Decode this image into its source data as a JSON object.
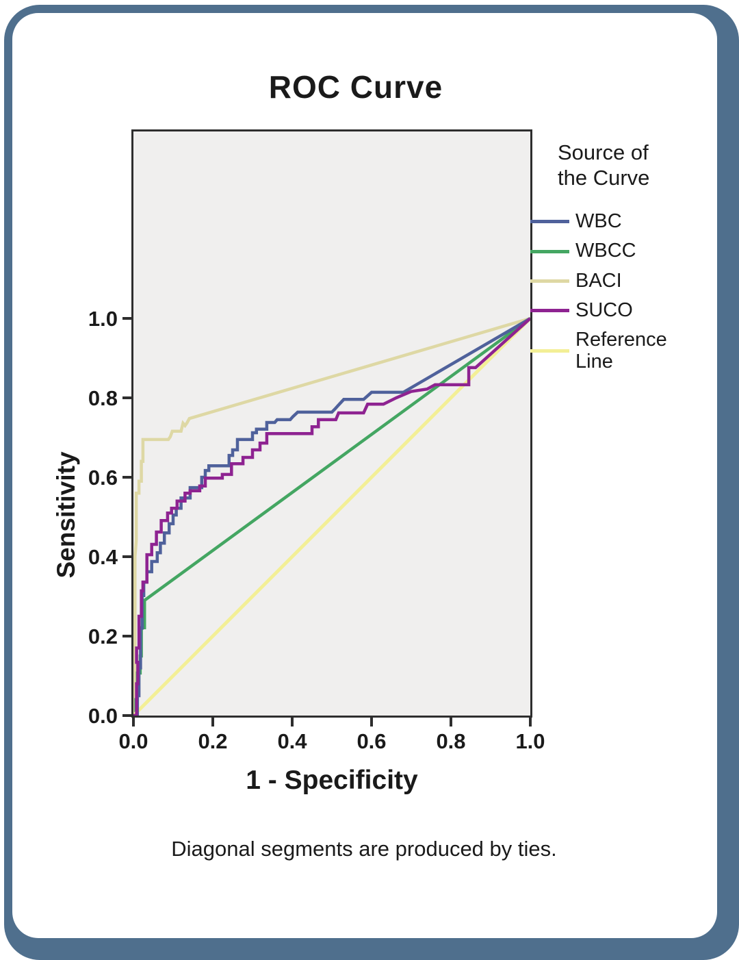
{
  "title": "ROC Curve",
  "footnote": "Diagonal segments are produced by ties.",
  "frame": {
    "border_color": "#4f6f8d",
    "inner_color": "#ffffff"
  },
  "chart_data": {
    "type": "line",
    "title": "ROC Curve",
    "xlabel": "1 - Specificity",
    "ylabel": "Sensitivity",
    "xlim": [
      0,
      1.0
    ],
    "ylim": [
      0,
      1.47
    ],
    "grid": false,
    "legend_position": "right",
    "legend_title": "Source of\nthe Curve",
    "x_ticks": [
      0.0,
      0.2,
      0.4,
      0.6,
      0.8,
      1.0
    ],
    "y_ticks": [
      0.0,
      0.2,
      0.4,
      0.6,
      0.8,
      1.0
    ],
    "x_tick_labels": [
      "0.0",
      "0.2",
      "0.4",
      "0.6",
      "0.8",
      "1.0"
    ],
    "y_tick_labels": [
      "0.0",
      "0.2",
      "0.4",
      "0.6",
      "0.8",
      "1.0"
    ],
    "plot_bg": "#f0efee",
    "frame_color": "#2e2e2e",
    "series": [
      {
        "name": "WBC",
        "color": "#4f619b",
        "points": [
          [
            0,
            0
          ],
          [
            0.01,
            0
          ],
          [
            0.01,
            0.05
          ],
          [
            0.014,
            0.05
          ],
          [
            0.014,
            0.12
          ],
          [
            0.018,
            0.12
          ],
          [
            0.018,
            0.22
          ],
          [
            0.022,
            0.22
          ],
          [
            0.022,
            0.302
          ],
          [
            0.026,
            0.302
          ],
          [
            0.026,
            0.336
          ],
          [
            0.034,
            0.336
          ],
          [
            0.034,
            0.362
          ],
          [
            0.046,
            0.362
          ],
          [
            0.046,
            0.388
          ],
          [
            0.06,
            0.388
          ],
          [
            0.06,
            0.41
          ],
          [
            0.068,
            0.41
          ],
          [
            0.068,
            0.434
          ],
          [
            0.078,
            0.434
          ],
          [
            0.078,
            0.46
          ],
          [
            0.09,
            0.46
          ],
          [
            0.09,
            0.483
          ],
          [
            0.1,
            0.483
          ],
          [
            0.1,
            0.505
          ],
          [
            0.108,
            0.505
          ],
          [
            0.108,
            0.522
          ],
          [
            0.12,
            0.522
          ],
          [
            0.12,
            0.548
          ],
          [
            0.143,
            0.548
          ],
          [
            0.143,
            0.574
          ],
          [
            0.172,
            0.574
          ],
          [
            0.172,
            0.6
          ],
          [
            0.181,
            0.6
          ],
          [
            0.181,
            0.617
          ],
          [
            0.19,
            0.617
          ],
          [
            0.19,
            0.629
          ],
          [
            0.241,
            0.629
          ],
          [
            0.241,
            0.655
          ],
          [
            0.25,
            0.655
          ],
          [
            0.25,
            0.669
          ],
          [
            0.262,
            0.669
          ],
          [
            0.262,
            0.695
          ],
          [
            0.3,
            0.695
          ],
          [
            0.3,
            0.712
          ],
          [
            0.31,
            0.712
          ],
          [
            0.31,
            0.721
          ],
          [
            0.336,
            0.721
          ],
          [
            0.336,
            0.738
          ],
          [
            0.356,
            0.738
          ],
          [
            0.362,
            0.745
          ],
          [
            0.395,
            0.745
          ],
          [
            0.402,
            0.753
          ],
          [
            0.414,
            0.764
          ],
          [
            0.5,
            0.764
          ],
          [
            0.508,
            0.772
          ],
          [
            0.516,
            0.781
          ],
          [
            0.53,
            0.796
          ],
          [
            0.58,
            0.796
          ],
          [
            0.6,
            0.814
          ],
          [
            0.68,
            0.814
          ],
          [
            1,
            1
          ]
        ]
      },
      {
        "name": "WBCC",
        "color": "#44a662",
        "points": [
          [
            0,
            0
          ],
          [
            0.006,
            0
          ],
          [
            0.006,
            0.04
          ],
          [
            0.01,
            0.04
          ],
          [
            0.01,
            0.107
          ],
          [
            0.017,
            0.107
          ],
          [
            0.017,
            0.15
          ],
          [
            0.02,
            0.15
          ],
          [
            0.02,
            0.221
          ],
          [
            0.028,
            0.221
          ],
          [
            0.028,
            0.29
          ],
          [
            1,
            1
          ]
        ]
      },
      {
        "name": "BACI",
        "color": "#ded8a4",
        "points": [
          [
            0,
            0
          ],
          [
            0.004,
            0
          ],
          [
            0.004,
            0.4
          ],
          [
            0.007,
            0.44
          ],
          [
            0.007,
            0.56
          ],
          [
            0.014,
            0.56
          ],
          [
            0.014,
            0.59
          ],
          [
            0.02,
            0.59
          ],
          [
            0.02,
            0.64
          ],
          [
            0.024,
            0.64
          ],
          [
            0.024,
            0.695
          ],
          [
            0.088,
            0.695
          ],
          [
            0.093,
            0.702
          ],
          [
            0.098,
            0.716
          ],
          [
            0.12,
            0.716
          ],
          [
            0.125,
            0.736
          ],
          [
            0.13,
            0.73
          ],
          [
            0.135,
            0.737
          ],
          [
            0.141,
            0.748
          ],
          [
            1,
            1
          ]
        ]
      },
      {
        "name": "SUCO",
        "color": "#8e2391",
        "points": [
          [
            0,
            0
          ],
          [
            0.008,
            0
          ],
          [
            0.008,
            0.08
          ],
          [
            0.011,
            0.08
          ],
          [
            0.011,
            0.134
          ],
          [
            0.008,
            0.134
          ],
          [
            0.008,
            0.17
          ],
          [
            0.014,
            0.17
          ],
          [
            0.014,
            0.25
          ],
          [
            0.02,
            0.25
          ],
          [
            0.02,
            0.314
          ],
          [
            0.024,
            0.314
          ],
          [
            0.024,
            0.336
          ],
          [
            0.034,
            0.336
          ],
          [
            0.034,
            0.405
          ],
          [
            0.046,
            0.405
          ],
          [
            0.046,
            0.431
          ],
          [
            0.058,
            0.431
          ],
          [
            0.058,
            0.462
          ],
          [
            0.07,
            0.462
          ],
          [
            0.07,
            0.491
          ],
          [
            0.086,
            0.491
          ],
          [
            0.086,
            0.51
          ],
          [
            0.096,
            0.51
          ],
          [
            0.096,
            0.522
          ],
          [
            0.11,
            0.522
          ],
          [
            0.11,
            0.54
          ],
          [
            0.13,
            0.54
          ],
          [
            0.13,
            0.56
          ],
          [
            0.143,
            0.56
          ],
          [
            0.143,
            0.566
          ],
          [
            0.167,
            0.566
          ],
          [
            0.167,
            0.578
          ],
          [
            0.181,
            0.578
          ],
          [
            0.181,
            0.598
          ],
          [
            0.224,
            0.598
          ],
          [
            0.224,
            0.607
          ],
          [
            0.247,
            0.607
          ],
          [
            0.247,
            0.634
          ],
          [
            0.276,
            0.634
          ],
          [
            0.276,
            0.65
          ],
          [
            0.3,
            0.65
          ],
          [
            0.3,
            0.669
          ],
          [
            0.319,
            0.669
          ],
          [
            0.319,
            0.686
          ],
          [
            0.336,
            0.686
          ],
          [
            0.336,
            0.71
          ],
          [
            0.45,
            0.71
          ],
          [
            0.45,
            0.727
          ],
          [
            0.466,
            0.727
          ],
          [
            0.466,
            0.745
          ],
          [
            0.51,
            0.745
          ],
          [
            0.517,
            0.762
          ],
          [
            0.58,
            0.762
          ],
          [
            0.59,
            0.784
          ],
          [
            0.63,
            0.784
          ],
          [
            0.662,
            0.8
          ],
          [
            0.7,
            0.816
          ],
          [
            0.74,
            0.822
          ],
          [
            0.76,
            0.833
          ],
          [
            0.845,
            0.833
          ],
          [
            0.845,
            0.876
          ],
          [
            0.862,
            0.876
          ],
          [
            1,
            1
          ]
        ]
      },
      {
        "name": "Reference Line",
        "color": "#f3ef96",
        "points": [
          [
            0,
            0
          ],
          [
            1,
            1
          ]
        ]
      }
    ]
  }
}
